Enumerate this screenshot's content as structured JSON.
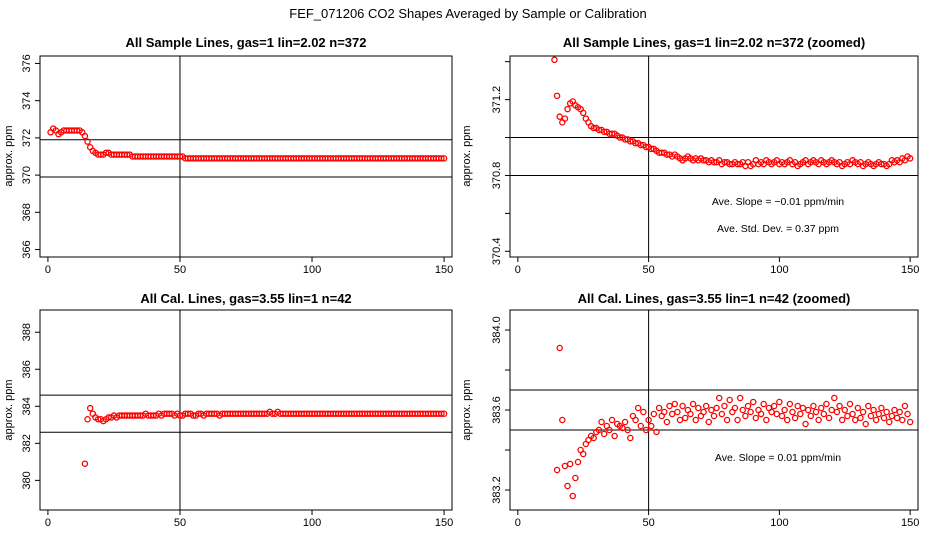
{
  "figure_title": "FEF_071206  CO2 Shapes Averaged by Sample or Calibration",
  "colors": {
    "points": "#ff0000",
    "lines": "#000000"
  },
  "chart_data": [
    {
      "id": "sample",
      "type": "scatter",
      "title": "All Sample Lines, gas=1 lin=2.02 n=372",
      "ylabel": "approx. ppm",
      "xlim": [
        -3,
        153
      ],
      "ylim": [
        365.6,
        376.4
      ],
      "x_ticks": [
        0,
        50,
        100,
        150
      ],
      "y_ticks": [
        366,
        368,
        370,
        372,
        374,
        376
      ],
      "hlines": [
        369.9,
        371.9
      ],
      "vline": 50,
      "annotations": [],
      "series": [
        {
          "marker": "open-circle",
          "x_start": 1,
          "x_step": 1,
          "values": [
            372.3,
            372.5,
            372.4,
            372.2,
            372.3,
            372.4,
            372.4,
            372.4,
            372.4,
            372.4,
            372.4,
            372.4,
            372.3,
            372.1,
            371.8,
            371.5,
            371.3,
            371.2,
            371.1,
            371.1,
            371.1,
            371.2,
            371.2,
            371.1,
            371.1,
            371.1,
            371.1,
            371.1,
            371.1,
            371.1,
            371.1,
            371.0,
            371.0,
            371.0,
            371.0,
            371.0,
            371.0,
            371.0,
            371.0,
            371.0,
            371.0,
            371.0,
            371.0,
            371.0,
            371.0,
            371.0,
            371.0,
            371.0,
            371.0,
            371.0,
            371.0,
            370.9,
            370.9,
            370.9,
            370.9,
            370.9,
            370.9,
            370.9,
            370.9,
            370.9,
            370.9,
            370.9,
            370.9,
            370.9,
            370.9,
            370.9,
            370.9,
            370.9,
            370.9,
            370.9,
            370.9,
            370.9,
            370.9,
            370.9,
            370.9,
            370.9,
            370.9,
            370.9,
            370.9,
            370.9,
            370.9,
            370.9,
            370.9,
            370.9,
            370.9,
            370.9,
            370.9,
            370.9,
            370.9,
            370.9,
            370.9,
            370.9,
            370.9,
            370.9,
            370.9,
            370.9,
            370.9,
            370.9,
            370.9,
            370.9,
            370.9,
            370.9,
            370.9,
            370.9,
            370.9,
            370.9,
            370.9,
            370.9,
            370.9,
            370.9,
            370.9,
            370.9,
            370.9,
            370.9,
            370.9,
            370.9,
            370.9,
            370.9,
            370.9,
            370.9,
            370.9,
            370.9,
            370.9,
            370.9,
            370.9,
            370.9,
            370.9,
            370.9,
            370.9,
            370.9,
            370.9,
            370.9,
            370.9,
            370.9,
            370.9,
            370.9,
            370.9,
            370.9,
            370.9,
            370.9,
            370.9,
            370.9,
            370.9,
            370.9,
            370.9,
            370.9,
            370.9,
            370.9,
            370.9,
            370.9
          ]
        }
      ]
    },
    {
      "id": "sample-zoomed",
      "type": "scatter",
      "title": "All Sample Lines, gas=1 lin=2.02 n=372 (zoomed)",
      "ylabel": "approx. ppm",
      "xlim": [
        -3,
        153
      ],
      "ylim": [
        370.37,
        371.43
      ],
      "x_ticks": [
        0,
        50,
        100,
        150
      ],
      "y_ticks": [
        370.4,
        370.6,
        370.8,
        371.0,
        371.2,
        371.4
      ],
      "y_tick_labels": [
        "370.4",
        "",
        "370.8",
        "",
        "371.2",
        ""
      ],
      "hlines": [
        370.8,
        371.0
      ],
      "vline": 50,
      "annotations": [
        "Ave. Slope =  −0.01  ppm/min",
        "Ave. Std. Dev. =  0.37  ppm"
      ],
      "series": [
        {
          "marker": "open-circle",
          "x_start": 14,
          "x_step": 1,
          "values": [
            371.41,
            371.22,
            371.11,
            371.08,
            371.1,
            371.15,
            371.18,
            371.19,
            371.17,
            371.16,
            371.15,
            371.13,
            371.1,
            371.08,
            371.06,
            371.05,
            371.05,
            371.04,
            371.04,
            371.03,
            371.03,
            371.02,
            371.02,
            371.02,
            371.01,
            371.0,
            371.0,
            370.99,
            370.99,
            370.98,
            370.98,
            370.97,
            370.97,
            370.96,
            370.96,
            370.95,
            370.95,
            370.94,
            370.94,
            370.93,
            370.92,
            370.92,
            370.92,
            370.91,
            370.91,
            370.9,
            370.91,
            370.9,
            370.89,
            370.88,
            370.89,
            370.9,
            370.89,
            370.88,
            370.89,
            370.88,
            370.89,
            370.88,
            370.88,
            370.87,
            370.88,
            370.87,
            370.87,
            370.88,
            370.86,
            370.87,
            370.87,
            370.86,
            370.86,
            370.87,
            370.86,
            370.86,
            370.87,
            370.85,
            370.87,
            370.85,
            370.86,
            370.88,
            370.86,
            370.87,
            370.86,
            370.88,
            370.87,
            370.86,
            370.87,
            370.88,
            370.86,
            370.87,
            370.86,
            370.87,
            370.88,
            370.86,
            370.87,
            370.85,
            370.86,
            370.87,
            370.88,
            370.86,
            370.87,
            370.88,
            370.87,
            370.86,
            370.88,
            370.87,
            370.86,
            370.87,
            370.88,
            370.87,
            370.86,
            370.87,
            370.85,
            370.86,
            370.87,
            370.86,
            370.88,
            370.87,
            370.86,
            370.87,
            370.85,
            370.86,
            370.87,
            370.86,
            370.85,
            370.86,
            370.87,
            370.86,
            370.86,
            370.85,
            370.86,
            370.88,
            370.87,
            370.88,
            370.87,
            370.89,
            370.88,
            370.9,
            370.89
          ]
        }
      ]
    },
    {
      "id": "cal",
      "type": "scatter",
      "title": "All Cal. Lines, gas=3.55 lin=1 n=42",
      "ylabel": "approx. ppm",
      "xlim": [
        -3,
        153
      ],
      "ylim": [
        378.4,
        389.2
      ],
      "x_ticks": [
        0,
        50,
        100,
        150
      ],
      "y_ticks": [
        380,
        382,
        384,
        386,
        388
      ],
      "y_tick_labels": [
        "380",
        "382",
        "384",
        "386",
        "388"
      ],
      "hlines": [
        382.6,
        384.6
      ],
      "vline": 50,
      "annotations": [],
      "series": [
        {
          "marker": "open-circle",
          "x_start": 14,
          "x_step": 1,
          "values": [
            380.9,
            383.3,
            383.9,
            383.6,
            383.4,
            383.3,
            383.3,
            383.2,
            383.3,
            383.4,
            383.4,
            383.5,
            383.4,
            383.5,
            383.5,
            383.5,
            383.5,
            383.5,
            383.5,
            383.5,
            383.5,
            383.5,
            383.5,
            383.6,
            383.5,
            383.5,
            383.5,
            383.5,
            383.6,
            383.5,
            383.6,
            383.6,
            383.6,
            383.6,
            383.5,
            383.6,
            383.5,
            383.5,
            383.6,
            383.6,
            383.6,
            383.5,
            383.5,
            383.6,
            383.6,
            383.5,
            383.6,
            383.6,
            383.6,
            383.6,
            383.6,
            383.5,
            383.6,
            383.6,
            383.6,
            383.6,
            383.6,
            383.6,
            383.6,
            383.6,
            383.6,
            383.6,
            383.6,
            383.6,
            383.6,
            383.6,
            383.6,
            383.6,
            383.6,
            383.6,
            383.7,
            383.6,
            383.6,
            383.7,
            383.6,
            383.6,
            383.6,
            383.6,
            383.6,
            383.6,
            383.6,
            383.6,
            383.6,
            383.6,
            383.6,
            383.6,
            383.6,
            383.6,
            383.6,
            383.6,
            383.6,
            383.6,
            383.6,
            383.6,
            383.6,
            383.6,
            383.6,
            383.6,
            383.6,
            383.6,
            383.6,
            383.6,
            383.6,
            383.6,
            383.6,
            383.6,
            383.6,
            383.6,
            383.6,
            383.6,
            383.6,
            383.6,
            383.6,
            383.6,
            383.6,
            383.6,
            383.6,
            383.6,
            383.6,
            383.6,
            383.6,
            383.6,
            383.6,
            383.6,
            383.6,
            383.6,
            383.6,
            383.6,
            383.6,
            383.6,
            383.6,
            383.6,
            383.6,
            383.6,
            383.6,
            383.6,
            383.6
          ]
        }
      ]
    },
    {
      "id": "cal-zoomed",
      "type": "scatter",
      "title": "All Cal. Lines, gas=3.55 lin=1 n=42 (zoomed)",
      "ylabel": "approx. ppm",
      "xlim": [
        -3,
        153
      ],
      "ylim": [
        383.1,
        384.1
      ],
      "x_ticks": [
        0,
        50,
        100,
        150
      ],
      "y_ticks": [
        383.2,
        383.4,
        383.6,
        383.8,
        384.0
      ],
      "y_tick_labels": [
        "383.2",
        "",
        "383.6",
        "",
        "384.0"
      ],
      "hlines": [
        383.5,
        383.7
      ],
      "vline": 50,
      "annotations": [
        "Ave. Slope =  0.01  ppm/min"
      ],
      "series": [
        {
          "marker": "open-circle",
          "x_start": 15,
          "x_step": 1,
          "values": [
            383.3,
            383.91,
            383.55,
            383.32,
            383.22,
            383.33,
            383.17,
            383.26,
            383.34,
            383.4,
            383.38,
            383.43,
            383.45,
            383.47,
            383.46,
            383.49,
            383.5,
            383.54,
            383.48,
            383.52,
            383.5,
            383.55,
            383.47,
            383.53,
            383.52,
            383.51,
            383.54,
            383.5,
            383.46,
            383.57,
            383.55,
            383.61,
            383.52,
            383.59,
            383.5,
            383.55,
            383.52,
            383.58,
            383.49,
            383.61,
            383.57,
            383.59,
            383.54,
            383.62,
            383.58,
            383.63,
            383.59,
            383.55,
            383.62,
            383.56,
            383.6,
            383.58,
            383.63,
            383.55,
            383.61,
            383.57,
            383.59,
            383.62,
            383.54,
            383.6,
            383.57,
            383.61,
            383.66,
            383.58,
            383.62,
            383.55,
            383.65,
            383.59,
            383.61,
            383.55,
            383.66,
            383.6,
            383.57,
            383.62,
            383.59,
            383.64,
            383.56,
            383.6,
            383.58,
            383.63,
            383.55,
            383.61,
            383.59,
            383.62,
            383.58,
            383.64,
            383.57,
            383.6,
            383.55,
            383.63,
            383.59,
            383.56,
            383.62,
            383.58,
            383.61,
            383.53,
            383.6,
            383.57,
            383.62,
            383.59,
            383.55,
            383.61,
            383.58,
            383.63,
            383.56,
            383.6,
            383.66,
            383.59,
            383.62,
            383.55,
            383.6,
            383.57,
            383.63,
            383.58,
            383.55,
            383.61,
            383.56,
            383.59,
            383.53,
            383.62,
            383.57,
            383.6,
            383.55,
            383.58,
            383.61,
            383.56,
            383.59,
            383.54,
            383.57,
            383.6,
            383.56,
            383.59,
            383.55,
            383.62,
            383.58,
            383.54
          ]
        }
      ]
    }
  ]
}
